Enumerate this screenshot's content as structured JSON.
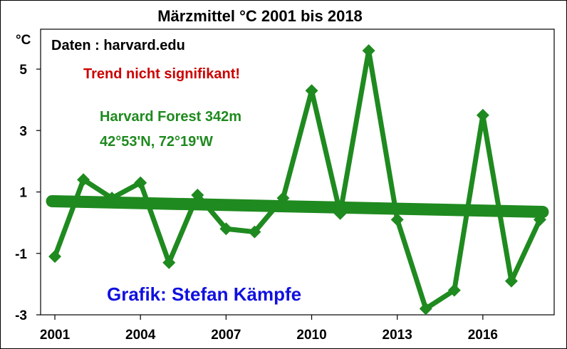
{
  "chart_data": {
    "type": "line",
    "title": "Märzmittel °C 2001 bis 2018",
    "ylabel": "°C",
    "xlabel": "",
    "xlim": [
      2000.5,
      2018.5
    ],
    "ylim": [
      -3,
      6.3
    ],
    "grid": false,
    "x_ticks": [
      2001,
      2004,
      2007,
      2010,
      2013,
      2016
    ],
    "x_tick_labels": [
      "2001",
      "2004",
      "2007",
      "2010",
      "2013",
      "2016"
    ],
    "y_ticks": [
      5,
      3,
      1,
      -1,
      -3
    ],
    "y_tick_labels": [
      "5",
      "3",
      "1",
      "-1",
      "-3"
    ],
    "series": [
      {
        "color": "#1f8a1f",
        "marker": "diamond",
        "x": [
          2001,
          2002,
          2003,
          2004,
          2005,
          2006,
          2007,
          2008,
          2009,
          2010,
          2011,
          2012,
          2013,
          2014,
          2015,
          2016,
          2017,
          2018
        ],
        "values": [
          -1.1,
          1.4,
          0.8,
          1.3,
          -1.3,
          0.9,
          -0.2,
          -0.3,
          0.8,
          4.3,
          0.3,
          5.6,
          0.1,
          -2.8,
          -2.2,
          3.5,
          -1.9,
          0.1
        ]
      }
    ],
    "trendline": {
      "color": "#1f8a1f",
      "x": [
        2001,
        2018
      ],
      "values": [
        0.7,
        0.35
      ]
    },
    "annotations": [
      {
        "text": "Daten : harvard.edu",
        "color": "#000000"
      },
      {
        "text": "Trend nicht signifikant!",
        "color": "#cc0000"
      },
      {
        "text": "Harvard Forest 342m",
        "color": "#1f8a1f"
      },
      {
        "text": "42°53'N, 72°19'W",
        "color": "#1f8a1f"
      },
      {
        "text": "Grafik: Stefan Kämpfe",
        "color": "#1010e0"
      }
    ]
  }
}
